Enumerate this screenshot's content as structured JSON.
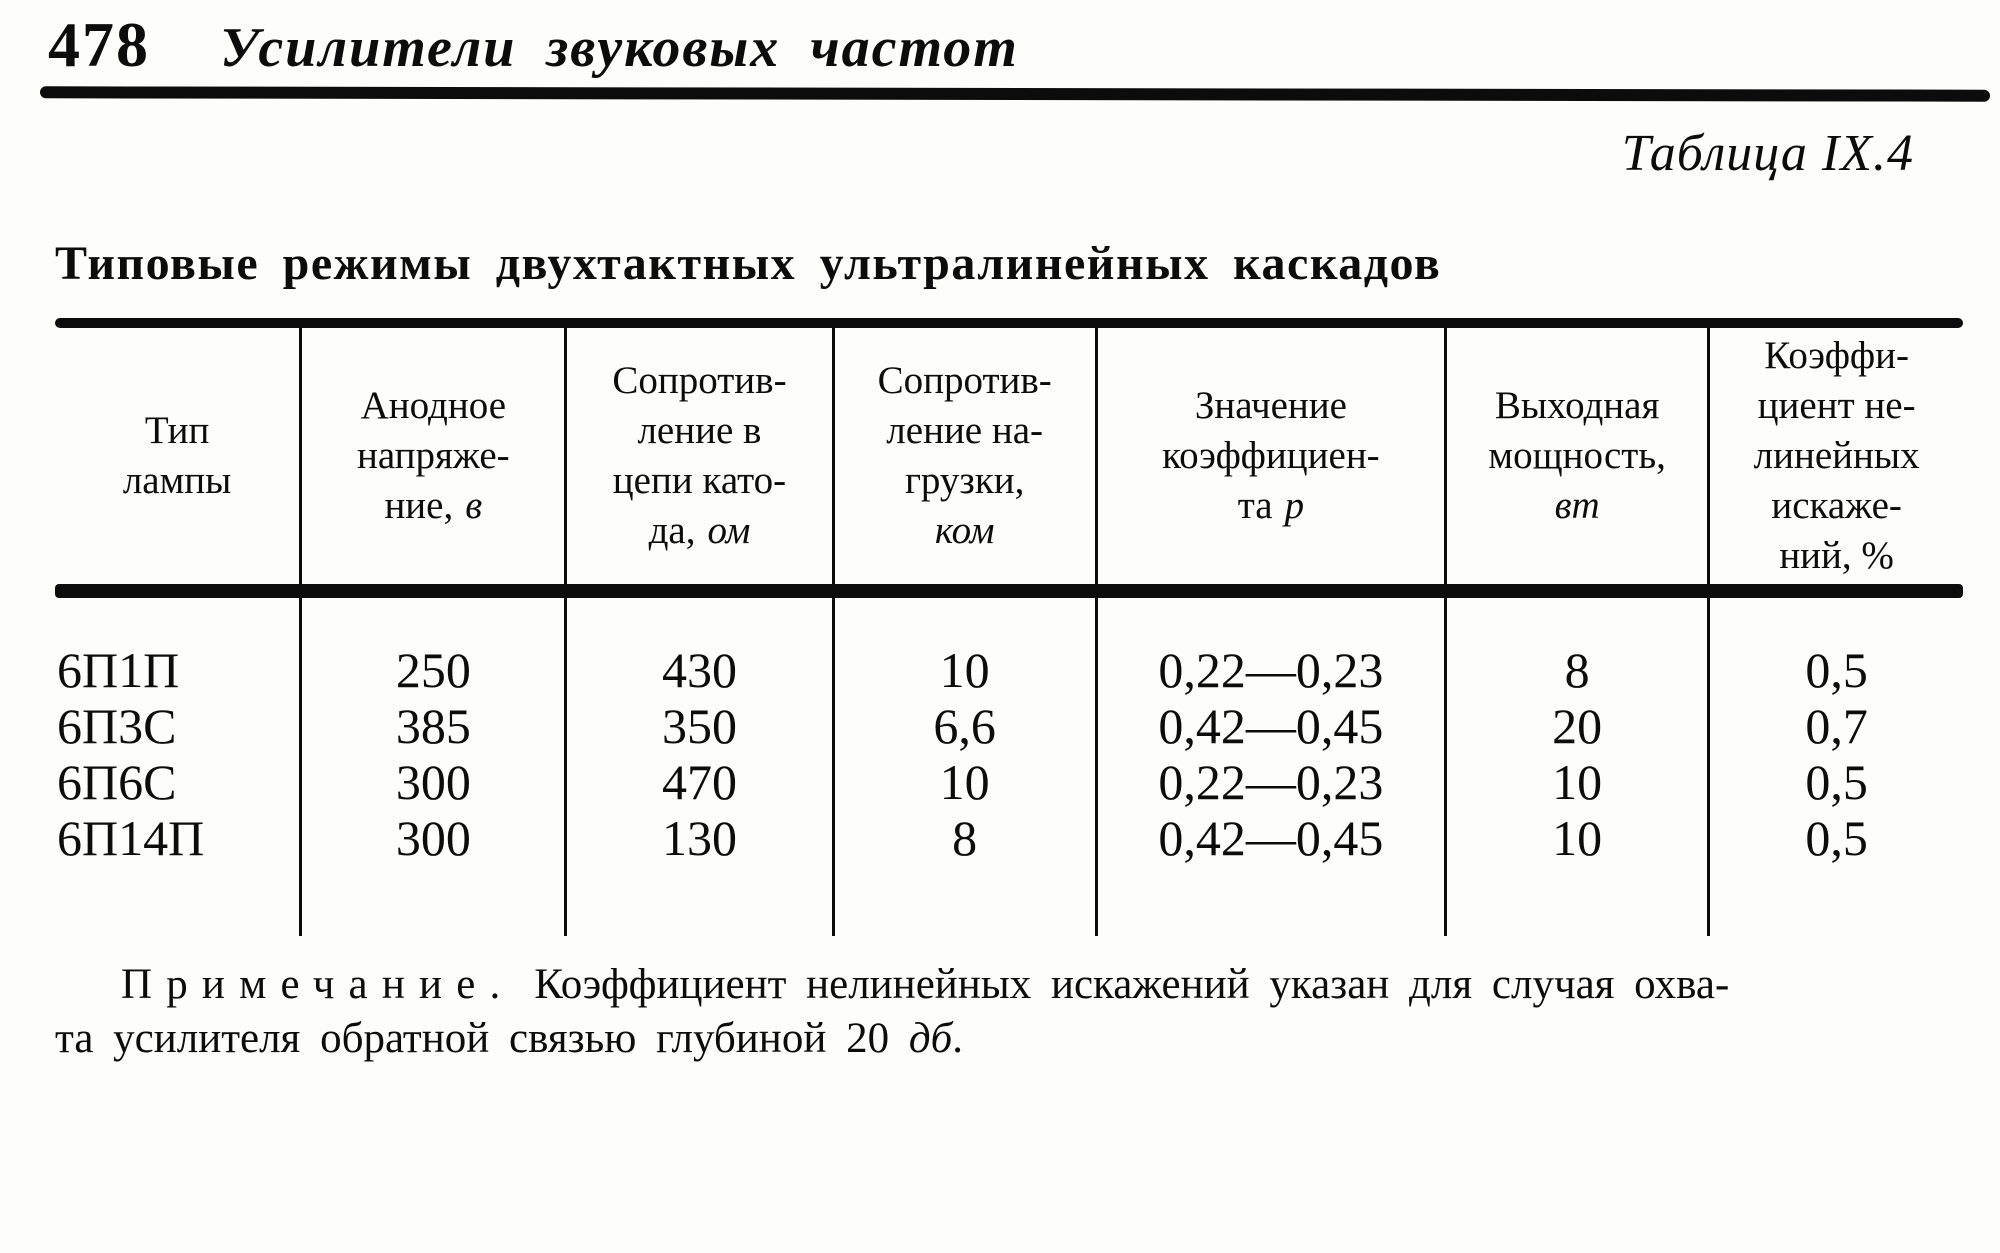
{
  "header": {
    "page_number": "478",
    "running_title": "Усилители звуковых частот"
  },
  "caption": "Таблица IX.4",
  "title": "Типовые режимы двухтактных ультралинейных каскадов",
  "table": {
    "headers": [
      {
        "l1": "Тип",
        "l2": "лампы"
      },
      {
        "l1": "Анодное",
        "l2": "напряже-",
        "l3": "ние,",
        "unit": "в"
      },
      {
        "l1": "Сопротив-",
        "l2": "ление в",
        "l3": "цепи като-",
        "l4": "да,",
        "unit": "ом"
      },
      {
        "l1": "Сопротив-",
        "l2": "ление на-",
        "l3": "грузки,",
        "unit": "ком"
      },
      {
        "l1": "Значение",
        "l2": "коэффициен-",
        "l3": "та",
        "unit": "р"
      },
      {
        "l1": "Выходная",
        "l2": "мощность,",
        "unit": "вт"
      },
      {
        "l1": "Коэффи-",
        "l2": "циент не-",
        "l3": "линейных",
        "l4": "искаже-",
        "l5": "ний, %"
      }
    ],
    "rows": [
      {
        "type": "6П1П",
        "anode_v": "250",
        "cathode_r": "430",
        "load_r": "10",
        "p_coeff": "0,22—0,23",
        "power_w": "8",
        "distortion": "0,5"
      },
      {
        "type": "6П3С",
        "anode_v": "385",
        "cathode_r": "350",
        "load_r": "6,6",
        "p_coeff": "0,42—0,45",
        "power_w": "20",
        "distortion": "0,7"
      },
      {
        "type": "6П6С",
        "anode_v": "300",
        "cathode_r": "470",
        "load_r": "10",
        "p_coeff": "0,22—0,23",
        "power_w": "10",
        "distortion": "0,5"
      },
      {
        "type": "6П14П",
        "anode_v": "300",
        "cathode_r": "130",
        "load_r": "8",
        "p_coeff": "0,42—0,45",
        "power_w": "10",
        "distortion": "0,5"
      }
    ]
  },
  "note": {
    "label": "Примечание.",
    "line1": "Коэффициент нелинейных искажений указан для случая охва-",
    "line2_pre": "та усилителя обратной связью глубиной 20",
    "line2_unit": "дб",
    "line2_end": "."
  }
}
